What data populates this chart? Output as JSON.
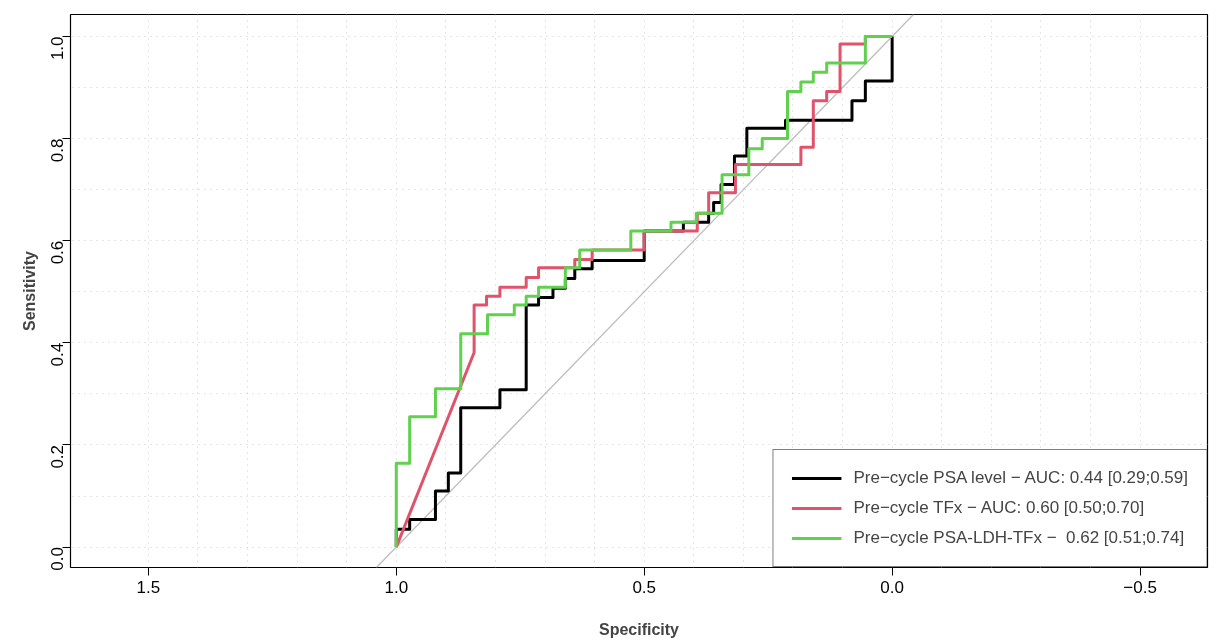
{
  "chart_data": {
    "type": "step",
    "xlabel": "Specificity",
    "ylabel": "Sensitivity",
    "xlim": [
      1.657,
      -0.636
    ],
    "ylim": [
      -0.04,
      1.043
    ],
    "xticks": [
      1.5,
      {
        "value": 1.0,
        "label": "1.0"
      },
      0.5,
      {
        "value": 0.0,
        "label": "0.0"
      },
      {
        "value": -0.5,
        "label": "−0.5"
      }
    ],
    "yticks": [
      {
        "value": 0.0,
        "label": "0.0"
      },
      0.2,
      0.4,
      0.6,
      0.8,
      {
        "value": 1.0,
        "label": "1.0"
      }
    ],
    "grid": true,
    "legend": "bottom right",
    "line_style": "solid",
    "marker": "none",
    "series": [
      {
        "type": "line",
        "color": "#bebebe",
        "x": [
          1.04,
          -0.043
        ],
        "values": [
          -0.04,
          1.043
        ]
      },
      {
        "name": "Pre−cycle PSA level − AUC: 0.44 [0.29;0.59]",
        "color": "#000000",
        "x": [
          1,
          1,
          0.973,
          0.973,
          0.921,
          0.921,
          0.895,
          0.895,
          0.87,
          0.87,
          0.791,
          0.791,
          0.738,
          0.738,
          0.713,
          0.713,
          0.684,
          0.684,
          0.659,
          0.659,
          0.64,
          0.64,
          0.605,
          0.605,
          0.5,
          0.5,
          0.421,
          0.421,
          0.37,
          0.37,
          0.36,
          0.36,
          0.345,
          0.345,
          0.318,
          0.318,
          0.293,
          0.293,
          0.215,
          0.215,
          0.081,
          0.081,
          0.054,
          0.054,
          0,
          0
        ],
        "values": [
          0,
          0.035,
          0.035,
          0.054,
          0.054,
          0.11,
          0.11,
          0.145,
          0.145,
          0.273,
          0.273,
          0.308,
          0.308,
          0.474,
          0.474,
          0.489,
          0.489,
          0.507,
          0.507,
          0.526,
          0.526,
          0.545,
          0.545,
          0.561,
          0.561,
          0.619,
          0.619,
          0.636,
          0.636,
          0.654,
          0.654,
          0.675,
          0.675,
          0.71,
          0.71,
          0.766,
          0.766,
          0.82,
          0.82,
          0.836,
          0.836,
          0.874,
          0.874,
          0.913,
          0.913,
          1
        ]
      },
      {
        "name": "Pre−cycle TFx − AUC: 0.60 [0.50;0.70]",
        "color": "#df536b",
        "x": [
          1,
          0.843,
          0.843,
          0.818,
          0.818,
          0.791,
          0.791,
          0.738,
          0.738,
          0.713,
          0.713,
          0.64,
          0.64,
          0.605,
          0.605,
          0.5,
          0.5,
          0.393,
          0.393,
          0.37,
          0.37,
          0.316,
          0.316,
          0.184,
          0.184,
          0.159,
          0.159,
          0.132,
          0.132,
          0.105,
          0.105,
          0.054,
          0.054,
          0
        ],
        "values": [
          0,
          0.381,
          0.474,
          0.474,
          0.491,
          0.491,
          0.509,
          0.509,
          0.528,
          0.528,
          0.547,
          0.547,
          0.563,
          0.563,
          0.582,
          0.582,
          0.619,
          0.619,
          0.654,
          0.654,
          0.694,
          0.694,
          0.749,
          0.749,
          0.783,
          0.783,
          0.874,
          0.874,
          0.892,
          0.892,
          0.985,
          0.985,
          1,
          1
        ]
      },
      {
        "name": "Pre−cycle PSA-LDH-TFx −  0.62 [0.51;0.74]",
        "color": "#61d04f",
        "x": [
          1,
          1,
          0.973,
          0.973,
          0.921,
          0.921,
          0.87,
          0.87,
          0.816,
          0.816,
          0.762,
          0.762,
          0.738,
          0.738,
          0.713,
          0.713,
          0.659,
          0.659,
          0.63,
          0.63,
          0.527,
          0.527,
          0.446,
          0.446,
          0.395,
          0.395,
          0.343,
          0.343,
          0.289,
          0.289,
          0.262,
          0.262,
          0.211,
          0.211,
          0.184,
          0.184,
          0.159,
          0.159,
          0.132,
          0.132,
          0.054,
          0.054,
          0
        ],
        "values": [
          0,
          0.164,
          0.164,
          0.255,
          0.255,
          0.31,
          0.31,
          0.418,
          0.418,
          0.455,
          0.455,
          0.474,
          0.474,
          0.491,
          0.491,
          0.509,
          0.509,
          0.547,
          0.547,
          0.582,
          0.582,
          0.619,
          0.619,
          0.636,
          0.636,
          0.654,
          0.654,
          0.729,
          0.729,
          0.78,
          0.78,
          0.8,
          0.8,
          0.892,
          0.892,
          0.911,
          0.911,
          0.93,
          0.93,
          0.948,
          0.948,
          1,
          1
        ]
      }
    ]
  }
}
